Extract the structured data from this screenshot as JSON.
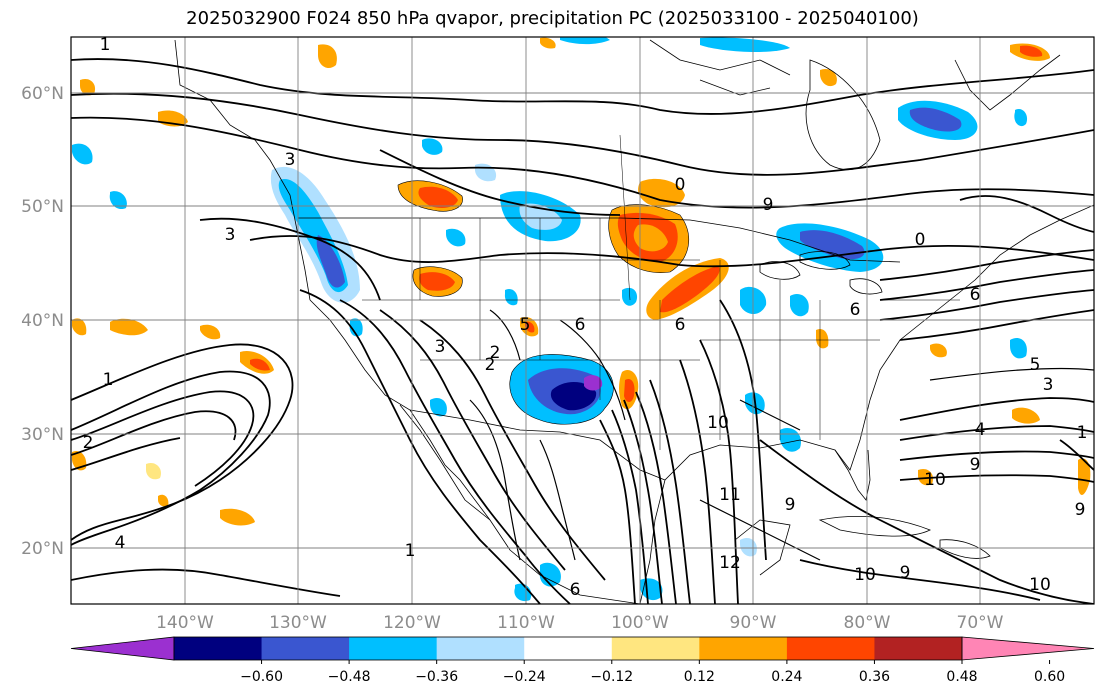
{
  "title": "2025032900 F024 850 hPa qvapor, precipitation PC (2025033100 - 2025040100)",
  "lat_labels": [
    "60°N",
    "50°N",
    "40°N",
    "30°N",
    "20°N"
  ],
  "lon_labels": [
    "140°W",
    "130°W",
    "120°W",
    "110°W",
    "100°W",
    "90°W",
    "80°W",
    "70°W"
  ],
  "colorbar": {
    "colors": [
      "#9b30d0",
      "#00007f",
      "#3a56d0",
      "#00bfff",
      "#b0e0ff",
      "#ffffff",
      "#ffe680",
      "#ffa500",
      "#ff4500",
      "#b22222",
      "#ff85b5"
    ],
    "labels": [
      "−0.60",
      "−0.48",
      "−0.36",
      "−0.24",
      "−0.12",
      "0.12",
      "0.24",
      "0.36",
      "0.48",
      "0.60"
    ]
  },
  "contour_labels": [
    "1",
    "3",
    "3",
    "6",
    "2",
    "5",
    "6",
    "6",
    "9",
    "0",
    "0",
    "6",
    "10",
    "5",
    "3",
    "1",
    "4",
    "9",
    "10",
    "9",
    "10",
    "9",
    "11",
    "12",
    "9",
    "10",
    "6",
    "2",
    "1",
    "4",
    "3",
    "2",
    "1"
  ]
}
